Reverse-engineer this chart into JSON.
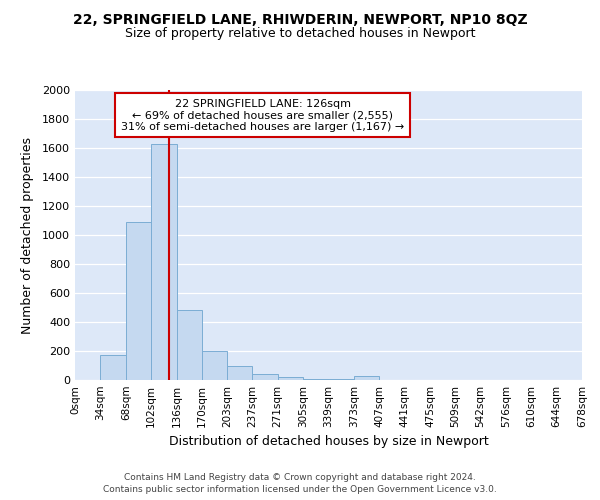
{
  "title1": "22, SPRINGFIELD LANE, RHIWDERIN, NEWPORT, NP10 8QZ",
  "title2": "Size of property relative to detached houses in Newport",
  "xlabel": "Distribution of detached houses by size in Newport",
  "ylabel": "Number of detached properties",
  "footer1": "Contains HM Land Registry data © Crown copyright and database right 2024.",
  "footer2": "Contains public sector information licensed under the Open Government Licence v3.0.",
  "bin_edges": [
    0,
    34,
    68,
    102,
    136,
    170,
    203,
    237,
    271,
    305,
    339,
    373,
    407,
    441,
    475,
    509,
    542,
    576,
    610,
    644,
    678
  ],
  "bar_heights": [
    0,
    170,
    1090,
    1630,
    480,
    200,
    100,
    40,
    20,
    10,
    10,
    25,
    0,
    0,
    0,
    0,
    0,
    0,
    0,
    0
  ],
  "bar_color": "#c5d9f0",
  "bar_edge_color": "#7badd4",
  "bg_color": "#dde8f8",
  "grid_color": "#ffffff",
  "vline_x": 126,
  "vline_color": "#cc0000",
  "annotation_line1": "22 SPRINGFIELD LANE: 126sqm",
  "annotation_line2": "← 69% of detached houses are smaller (2,555)",
  "annotation_line3": "31% of semi-detached houses are larger (1,167) →",
  "annotation_box_edgecolor": "#cc0000",
  "ylim": [
    0,
    2000
  ],
  "yticks": [
    0,
    200,
    400,
    600,
    800,
    1000,
    1200,
    1400,
    1600,
    1800,
    2000
  ],
  "tick_labels": [
    "0sqm",
    "34sqm",
    "68sqm",
    "102sqm",
    "136sqm",
    "170sqm",
    "203sqm",
    "237sqm",
    "271sqm",
    "305sqm",
    "339sqm",
    "373sqm",
    "407sqm",
    "441sqm",
    "475sqm",
    "509sqm",
    "542sqm",
    "576sqm",
    "610sqm",
    "644sqm",
    "678sqm"
  ],
  "title1_fontsize": 10,
  "title2_fontsize": 9,
  "xlabel_fontsize": 9,
  "ylabel_fontsize": 9,
  "footer_fontsize": 6.5,
  "tick_fontsize": 7.5,
  "ytick_fontsize": 8,
  "annotation_fontsize": 8
}
